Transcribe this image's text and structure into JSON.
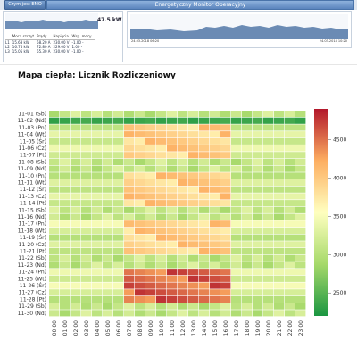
{
  "topbar": {
    "button_label": "Czym jest EMO",
    "title": "Energetyczny Monitor Operacyjny"
  },
  "power_panel": {
    "total": "47.5 kW",
    "headers": [
      "",
      "Moca szczyt",
      "Prądy",
      "Napięcia",
      "Wsp. mocy"
    ],
    "rows": [
      {
        "phase": "L1",
        "power": "15.68 kW",
        "current": "68.20 A",
        "voltage": "230.00 V",
        "pf": "-1.00 -"
      },
      {
        "phase": "L2",
        "power": "16.75 kW",
        "current": "72.80 A",
        "voltage": "229.00 V",
        "pf": "1.00 -"
      },
      {
        "phase": "L3",
        "power": "15.05 kW",
        "current": "65.30 A",
        "voltage": "230.00 V",
        "pf": "-1.00 -"
      }
    ]
  },
  "trend_panel": {
    "date_start": "24.03.2018 06:20",
    "date_end": "24.03.2018 10:20"
  },
  "heatmap_title": "Mapa ciepła: Licznik Rozliczeniowy",
  "chart_data": {
    "type": "heatmap",
    "title": "Mapa ciepła: Licznik Rozliczeniowy",
    "rows": [
      "11-01 (Sb)",
      "11-02 (Nd)",
      "11-03 (Pn)",
      "11-04 (Wt)",
      "11-05 (Śr)",
      "11-06 (Cz)",
      "11-07 (Pt)",
      "11-08 (Sb)",
      "11-09 (Nd)",
      "11-10 (Pn)",
      "11-11 (Wt)",
      "11-12 (Śr)",
      "11-13 (Cz)",
      "11-14 (Pt)",
      "11-15 (Sb)",
      "11-16 (Nd)",
      "11-17 (Pn)",
      "11-18 (Wt)",
      "11-19 (Śr)",
      "11-20 (Cz)",
      "11-21 (Pt)",
      "11-22 (Sb)",
      "11-23 (Nd)",
      "11-24 (Pn)",
      "11-25 (Wt)",
      "11-26 (Śr)",
      "11-27 (Cz)",
      "11-28 (Pt)",
      "11-29 (Sb)",
      "11-30 (Nd)"
    ],
    "columns": [
      "00:00",
      "01:00",
      "02:00",
      "03:00",
      "04:00",
      "05:00",
      "06:00",
      "07:00",
      "08:00",
      "09:00",
      "10:00",
      "11:00",
      "12:00",
      "13:00",
      "14:00",
      "15:00",
      "16:00",
      "17:00",
      "18:00",
      "19:00",
      "20:00",
      "21:00",
      "22:00",
      "23:00"
    ],
    "colorbar_ticks": [
      2500,
      3000,
      3500,
      4000,
      4500
    ],
    "range": [
      2200,
      4900
    ],
    "colors": {
      "low": "#1a9641",
      "mid": "#ffffbf",
      "high": "#b2182b"
    }
  }
}
